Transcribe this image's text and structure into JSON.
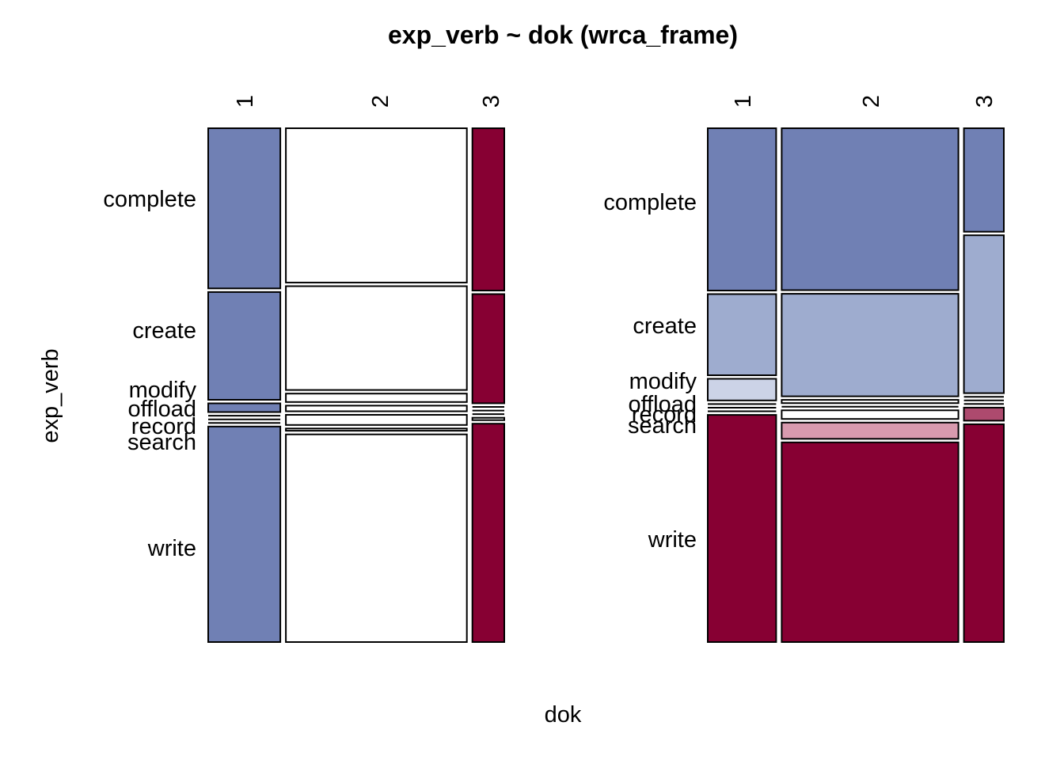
{
  "chart_data": {
    "type": "mosaic",
    "title": "exp_verb ~ dok (wrca_frame)",
    "xlabel": "dok",
    "ylabel": "exp_verb",
    "x_categories": [
      "1",
      "2",
      "3"
    ],
    "y_categories": [
      "complete",
      "create",
      "modify",
      "offload",
      "record",
      "search",
      "write"
    ],
    "colors": {
      "blue_strong": "#7080B4",
      "blue_light": "#9EACCF",
      "blue_pale": "#CCD3E7",
      "neutral": "#FFFFFF",
      "red_strong": "#870033",
      "red_medium": "#AD4A6E",
      "red_light": "#D89AAE"
    },
    "panels": [
      {
        "name": "left-mosaic",
        "x_column_shares": [
          0.253,
          0.635,
          0.112
        ],
        "description_of_shading": "residual-based shading",
        "cells": [
          {
            "dok": "1",
            "exp_verb": "complete",
            "share": 0.275,
            "color": "blue_strong"
          },
          {
            "dok": "1",
            "exp_verb": "create",
            "share": 0.185,
            "color": "blue_strong"
          },
          {
            "dok": "1",
            "exp_verb": "modify",
            "share": 0.015,
            "color": "blue_strong"
          },
          {
            "dok": "1",
            "exp_verb": "offload",
            "share": 0.0,
            "color": "neutral"
          },
          {
            "dok": "1",
            "exp_verb": "record",
            "share": 0.0,
            "color": "neutral"
          },
          {
            "dok": "1",
            "exp_verb": "search",
            "share": 0.0,
            "color": "neutral"
          },
          {
            "dok": "1",
            "exp_verb": "write",
            "share": 0.37,
            "color": "blue_strong"
          },
          {
            "dok": "2",
            "exp_verb": "complete",
            "share": 0.275,
            "color": "neutral"
          },
          {
            "dok": "2",
            "exp_verb": "create",
            "share": 0.185,
            "color": "neutral"
          },
          {
            "dok": "2",
            "exp_verb": "modify",
            "share": 0.015,
            "color": "neutral"
          },
          {
            "dok": "2",
            "exp_verb": "offload",
            "share": 0.01,
            "color": "neutral"
          },
          {
            "dok": "2",
            "exp_verb": "record",
            "share": 0.018,
            "color": "neutral"
          },
          {
            "dok": "2",
            "exp_verb": "search",
            "share": 0.004,
            "color": "neutral"
          },
          {
            "dok": "2",
            "exp_verb": "write",
            "share": 0.37,
            "color": "neutral"
          },
          {
            "dok": "3",
            "exp_verb": "complete",
            "share": 0.275,
            "color": "red_strong"
          },
          {
            "dok": "3",
            "exp_verb": "create",
            "share": 0.185,
            "color": "red_strong"
          },
          {
            "dok": "3",
            "exp_verb": "modify",
            "share": 0.0,
            "color": "neutral"
          },
          {
            "dok": "3",
            "exp_verb": "offload",
            "share": 0.0,
            "color": "neutral"
          },
          {
            "dok": "3",
            "exp_verb": "record",
            "share": 0.0,
            "color": "neutral"
          },
          {
            "dok": "3",
            "exp_verb": "search",
            "share": 0.004,
            "color": "neutral"
          },
          {
            "dok": "3",
            "exp_verb": "write",
            "share": 0.37,
            "color": "red_strong"
          }
        ]
      },
      {
        "name": "right-mosaic",
        "x_column_shares": [
          0.24,
          0.62,
          0.14
        ],
        "description_of_shading": "residual-based shading",
        "cells": [
          {
            "dok": "1",
            "exp_verb": "complete",
            "share": 0.3,
            "color": "blue_strong"
          },
          {
            "dok": "1",
            "exp_verb": "create",
            "share": 0.15,
            "color": "blue_light"
          },
          {
            "dok": "1",
            "exp_verb": "modify",
            "share": 0.04,
            "color": "blue_pale"
          },
          {
            "dok": "1",
            "exp_verb": "offload",
            "share": 0.0,
            "color": "neutral"
          },
          {
            "dok": "1",
            "exp_verb": "record",
            "share": 0.0,
            "color": "neutral"
          },
          {
            "dok": "1",
            "exp_verb": "search",
            "share": 0.0,
            "color": "neutral"
          },
          {
            "dok": "1",
            "exp_verb": "write",
            "share": 0.42,
            "color": "red_strong"
          },
          {
            "dok": "2",
            "exp_verb": "complete",
            "share": 0.3,
            "color": "blue_strong"
          },
          {
            "dok": "2",
            "exp_verb": "create",
            "share": 0.19,
            "color": "blue_light"
          },
          {
            "dok": "2",
            "exp_verb": "modify",
            "share": 0.006,
            "color": "neutral"
          },
          {
            "dok": "2",
            "exp_verb": "offload",
            "share": 0.0,
            "color": "neutral"
          },
          {
            "dok": "2",
            "exp_verb": "record",
            "share": 0.016,
            "color": "neutral"
          },
          {
            "dok": "2",
            "exp_verb": "search",
            "share": 0.03,
            "color": "red_light"
          },
          {
            "dok": "2",
            "exp_verb": "write",
            "share": 0.37,
            "color": "red_strong"
          },
          {
            "dok": "3",
            "exp_verb": "complete",
            "share": 0.19,
            "color": "blue_strong"
          },
          {
            "dok": "3",
            "exp_verb": "create",
            "share": 0.29,
            "color": "blue_light"
          },
          {
            "dok": "3",
            "exp_verb": "modify",
            "share": 0.0,
            "color": "neutral"
          },
          {
            "dok": "3",
            "exp_verb": "offload",
            "share": 0.0,
            "color": "neutral"
          },
          {
            "dok": "3",
            "exp_verb": "record",
            "share": 0.0,
            "color": "neutral"
          },
          {
            "dok": "3",
            "exp_verb": "search",
            "share": 0.024,
            "color": "red_medium"
          },
          {
            "dok": "3",
            "exp_verb": "write",
            "share": 0.4,
            "color": "red_strong"
          }
        ]
      }
    ]
  }
}
